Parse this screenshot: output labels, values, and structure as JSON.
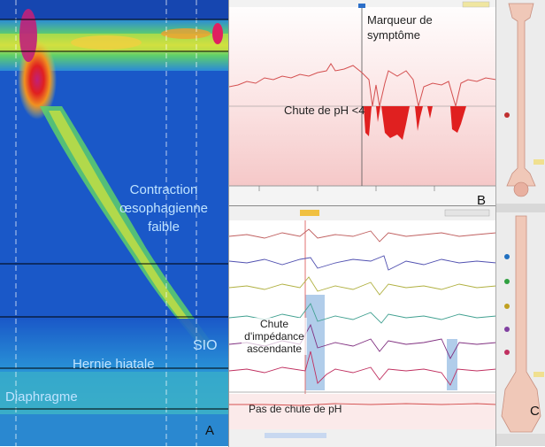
{
  "panel_a": {
    "letter": "A",
    "label_contraction": "Contraction\nœsophagienne\nfaible",
    "label_sio": "SIO",
    "label_hernie": "Hernie hiatale",
    "label_diaphragme": "Diaphragme"
  },
  "panel_b": {
    "letter": "B",
    "label_marqueur": "Marqueur de\nsymptôme",
    "label_chute_ph": "Chute de pH <4"
  },
  "panel_c": {
    "letter": "C"
  },
  "panel_d": {
    "label_impedance": "Chute\nd'impédance\nascendante",
    "label_pas_chute": "Pas de chute de pH"
  },
  "colors": {
    "heatmap_background": "#1a58c8",
    "label_light_blue": "#bfe3ff",
    "ph_line": "#d45050",
    "ph_drop": "#e02020",
    "impedance_band": "#a9c8e8"
  }
}
